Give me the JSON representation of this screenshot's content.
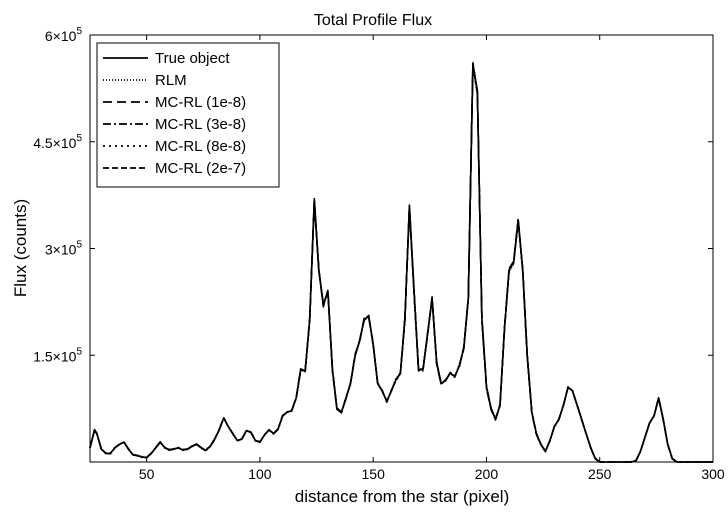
{
  "chart_data": {
    "type": "line",
    "title": "Total Profile Flux",
    "xlabel": "distance from the star (pixel)",
    "ylabel": "Flux (counts)",
    "xlim": [
      25,
      300
    ],
    "ylim": [
      0,
      600000
    ],
    "xticks": [
      50,
      100,
      150,
      200,
      250,
      300
    ],
    "xtick_labels": [
      "50",
      "100",
      "150",
      "200",
      "250",
      "300"
    ],
    "yticks": [
      150000,
      300000,
      450000,
      600000
    ],
    "ytick_labels": [
      {
        "mantissa": "1.5×10",
        "exp": "5"
      },
      {
        "mantissa": "3×10",
        "exp": "5"
      },
      {
        "mantissa": "4.5×10",
        "exp": "5"
      },
      {
        "mantissa": "6×10",
        "exp": "5"
      }
    ],
    "grid": false,
    "legend_position": "top-left",
    "x": [
      25,
      27,
      28,
      30,
      32,
      34,
      36,
      38,
      40,
      42,
      44,
      46,
      48,
      50,
      52,
      54,
      56,
      58,
      60,
      62,
      64,
      66,
      68,
      70,
      72,
      74,
      76,
      78,
      80,
      82,
      84,
      86,
      88,
      90,
      92,
      94,
      96,
      98,
      100,
      102,
      104,
      106,
      108,
      110,
      112,
      114,
      116,
      118,
      120,
      122,
      124,
      126,
      128,
      130,
      132,
      134,
      136,
      138,
      140,
      142,
      144,
      146,
      148,
      150,
      152,
      154,
      156,
      158,
      160,
      162,
      164,
      166,
      168,
      170,
      172,
      174,
      176,
      178,
      180,
      182,
      184,
      186,
      188,
      190,
      192,
      194,
      196,
      198,
      200,
      202,
      204,
      206,
      208,
      210,
      212,
      214,
      216,
      218,
      220,
      222,
      224,
      226,
      228,
      230,
      232,
      234,
      236,
      238,
      240,
      242,
      244,
      246,
      248,
      250,
      252,
      254,
      256,
      258,
      260,
      262,
      264,
      266,
      268,
      270,
      272,
      274,
      276,
      278,
      280,
      282,
      284,
      286,
      288,
      290,
      292,
      294,
      296,
      298,
      300
    ],
    "series": [
      {
        "name": "True object",
        "dash": "solid",
        "values": [
          20000,
          45000,
          40000,
          18000,
          12000,
          12000,
          20000,
          25000,
          28000,
          18000,
          10000,
          9000,
          7000,
          6000,
          12000,
          20000,
          28000,
          20000,
          17000,
          18000,
          20000,
          17000,
          18000,
          22000,
          25000,
          20000,
          16000,
          22000,
          32000,
          45000,
          62000,
          50000,
          40000,
          30000,
          32000,
          44000,
          42000,
          30000,
          28000,
          38000,
          45000,
          40000,
          46000,
          65000,
          70000,
          72000,
          90000,
          130000,
          128000,
          200000,
          370000,
          270000,
          220000,
          240000,
          130000,
          75000,
          70000,
          90000,
          110000,
          150000,
          170000,
          200000,
          205000,
          165000,
          110000,
          100000,
          85000,
          100000,
          115000,
          125000,
          200000,
          360000,
          240000,
          130000,
          130000,
          180000,
          230000,
          140000,
          110000,
          115000,
          125000,
          120000,
          135000,
          160000,
          230000,
          560000,
          520000,
          200000,
          105000,
          75000,
          60000,
          80000,
          190000,
          270000,
          280000,
          340000,
          270000,
          150000,
          70000,
          40000,
          25000,
          15000,
          30000,
          50000,
          60000,
          80000,
          105000,
          100000,
          80000,
          60000,
          40000,
          20000,
          5000,
          0,
          0,
          0,
          0,
          0,
          0,
          0,
          0,
          2000,
          15000,
          35000,
          55000,
          65000,
          90000,
          60000,
          25000,
          5000,
          0,
          0,
          0,
          0,
          0,
          0,
          0,
          0,
          0
        ]
      },
      {
        "name": "RLM",
        "dash": "1,2",
        "values": [
          20000,
          44000,
          41000,
          19000,
          12000,
          12500,
          19500,
          25500,
          27500,
          18500,
          10500,
          9000,
          7500,
          6500,
          12500,
          19500,
          27500,
          20500,
          17500,
          18500,
          19500,
          17500,
          18500,
          21500,
          25500,
          20500,
          16500,
          21500,
          31500,
          44500,
          61500,
          50500,
          40500,
          30500,
          32500,
          43500,
          42500,
          30500,
          28500,
          37500,
          45500,
          40500,
          45500,
          64500,
          70500,
          71500,
          89500,
          129000,
          129000,
          198000,
          365000,
          268000,
          225000,
          236000,
          132000,
          76000,
          71000,
          89000,
          112000,
          148000,
          172000,
          198000,
          207000,
          163000,
          112000,
          99000,
          86000,
          99000,
          117000,
          124000,
          205000,
          355000,
          245000,
          132000,
          128000,
          182000,
          228000,
          142000,
          111000,
          114000,
          126000,
          119000,
          137000,
          158000,
          232000,
          555000,
          515000,
          205000,
          107000,
          76000,
          61000,
          79000,
          192000,
          268000,
          278000,
          338000,
          272000,
          152000,
          71000,
          41000,
          25500,
          15500,
          29500,
          50500,
          59500,
          80500,
          104500,
          100500,
          79500,
          60500,
          39500,
          20500,
          5500,
          500,
          0,
          0,
          0,
          0,
          0,
          0,
          500,
          2500,
          15500,
          34500,
          55500,
          64500,
          89500,
          60500,
          25500,
          5500,
          500,
          0,
          0,
          0,
          0,
          0,
          0,
          0,
          0
        ]
      },
      {
        "name": "MC-RL (1e-8)",
        "dash": "9,5",
        "values": [
          20500,
          45500,
          40500,
          18500,
          12500,
          11500,
          20500,
          24500,
          28500,
          17500,
          10500,
          8500,
          7500,
          6500,
          11500,
          20500,
          28500,
          19500,
          17500,
          17500,
          20500,
          16500,
          18500,
          22500,
          24500,
          19500,
          16500,
          22500,
          32500,
          45500,
          62500,
          49500,
          40500,
          29500,
          32500,
          44500,
          41500,
          30500,
          27500,
          38500,
          44500,
          40500,
          46500,
          65500,
          69500,
          72500,
          90500,
          131000,
          127000,
          202000,
          368000,
          272000,
          218000,
          242000,
          128000,
          74000,
          69000,
          91000,
          109000,
          152000,
          168000,
          202000,
          203000,
          167000,
          108000,
          101000,
          84000,
          101000,
          113000,
          126000,
          198000,
          358000,
          238000,
          128000,
          132000,
          178000,
          232000,
          138000,
          109000,
          116000,
          124000,
          121000,
          133000,
          162000,
          228000,
          558000,
          522000,
          198000,
          103000,
          74000,
          59000,
          81000,
          188000,
          272000,
          282000,
          342000,
          268000,
          148000,
          69000,
          39000,
          24500,
          14500,
          30500,
          49500,
          60500,
          79500,
          105500,
          99500,
          80500,
          59500,
          40500,
          19500,
          4500,
          0,
          0,
          0,
          0,
          0,
          0,
          0,
          0,
          1500,
          14500,
          35500,
          54500,
          65500,
          90500,
          59500,
          24500,
          4500,
          0,
          0,
          0,
          0,
          0,
          0,
          0,
          0,
          0
        ]
      },
      {
        "name": "MC-RL (3e-8)",
        "dash": "8,3,2,3",
        "values": [
          19500,
          44500,
          39500,
          18000,
          11500,
          12500,
          19500,
          25000,
          27500,
          18500,
          9500,
          9500,
          6500,
          6000,
          12500,
          19500,
          27500,
          20500,
          16500,
          18500,
          19500,
          17500,
          17500,
          21500,
          25500,
          20500,
          15500,
          21500,
          31500,
          44500,
          61500,
          50500,
          39500,
          30500,
          31500,
          43500,
          42500,
          29500,
          28500,
          37500,
          45500,
          39500,
          45500,
          64500,
          70500,
          71500,
          89500,
          129000,
          128000,
          199000,
          366000,
          269000,
          222000,
          238000,
          131000,
          76000,
          70000,
          89000,
          111000,
          149000,
          171000,
          199000,
          206000,
          164000,
          111000,
          99000,
          86000,
          99000,
          116000,
          124000,
          203000,
          357000,
          243000,
          131000,
          129000,
          181000,
          229000,
          141000,
          110000,
          114000,
          126000,
          119000,
          136000,
          159000,
          231000,
          557000,
          518000,
          203000,
          106000,
          76000,
          60000,
          79000,
          191000,
          269000,
          279000,
          339000,
          271000,
          151000,
          70000,
          40000,
          25000,
          15000,
          29500,
          50500,
          59500,
          80500,
          104500,
          100500,
          79500,
          60500,
          39500,
          20500,
          5000,
          0,
          0,
          0,
          0,
          0,
          0,
          0,
          0,
          2000,
          15000,
          35000,
          55000,
          65000,
          90000,
          60000,
          25000,
          5000,
          0,
          0,
          0,
          0,
          0,
          0,
          0,
          0,
          0
        ]
      },
      {
        "name": "MC-RL (8e-8)",
        "dash": "2,4",
        "values": [
          20000,
          45000,
          40500,
          18500,
          12000,
          12000,
          20000,
          25000,
          28000,
          18000,
          10000,
          9000,
          7000,
          6000,
          12000,
          20000,
          28000,
          20000,
          17000,
          18000,
          20000,
          17000,
          18000,
          22000,
          25000,
          20000,
          16000,
          22000,
          32000,
          45000,
          62000,
          50000,
          40000,
          30000,
          32000,
          44000,
          42000,
          30000,
          28000,
          38000,
          45000,
          40000,
          46000,
          65000,
          70000,
          72000,
          90000,
          130000,
          128500,
          201000,
          369000,
          271000,
          219000,
          241000,
          129000,
          74500,
          69500,
          90500,
          109500,
          151000,
          169000,
          201000,
          204000,
          166000,
          109000,
          100500,
          84500,
          100500,
          114000,
          125500,
          199000,
          359000,
          239000,
          129000,
          131000,
          179000,
          231000,
          139000,
          109500,
          115500,
          124500,
          120500,
          134000,
          161000,
          229000,
          559000,
          521000,
          199000,
          104000,
          74500,
          59500,
          80500,
          189000,
          271000,
          281000,
          341000,
          269000,
          149000,
          69500,
          39500,
          24500,
          14500,
          30000,
          50000,
          60000,
          80000,
          105000,
          100000,
          80000,
          60000,
          40000,
          20000,
          5000,
          0,
          0,
          0,
          0,
          0,
          0,
          0,
          0,
          2000,
          15000,
          35000,
          55000,
          65000,
          90000,
          60000,
          25000,
          5000,
          0,
          0,
          0,
          0,
          0,
          0,
          0,
          0,
          0
        ]
      },
      {
        "name": "MC-RL (2e-7)",
        "dash": "6,3",
        "values": [
          19800,
          44800,
          40200,
          18200,
          12200,
          12200,
          19800,
          25200,
          27800,
          18200,
          10200,
          9200,
          7200,
          6200,
          12200,
          19800,
          27800,
          20200,
          17200,
          18200,
          19800,
          17200,
          18200,
          21800,
          25200,
          20200,
          16200,
          21800,
          31800,
          44800,
          61800,
          50200,
          40200,
          30200,
          32200,
          43800,
          42200,
          30200,
          28200,
          37800,
          45200,
          40200,
          45800,
          64800,
          70200,
          71800,
          89800,
          129500,
          128200,
          199500,
          367000,
          270000,
          221000,
          239000,
          130000,
          75500,
          70500,
          89500,
          110500,
          149500,
          170500,
          199500,
          205500,
          164500,
          110500,
          99500,
          85500,
          99500,
          115500,
          124500,
          201000,
          361000,
          241000,
          130500,
          129500,
          180500,
          230500,
          140500,
          110500,
          114500,
          125500,
          119500,
          135500,
          159500,
          230500,
          561000,
          519000,
          201000,
          105500,
          75500,
          60500,
          79500,
          190500,
          270500,
          280500,
          339500,
          270500,
          150500,
          70500,
          40500,
          25200,
          15200,
          29800,
          50200,
          59800,
          80200,
          104800,
          100200,
          79800,
          60200,
          39800,
          20200,
          5200,
          200,
          0,
          0,
          0,
          0,
          0,
          0,
          200,
          2200,
          15200,
          34800,
          55200,
          64800,
          89800,
          60200,
          25200,
          5200,
          200,
          0,
          0,
          0,
          0,
          0,
          0,
          0,
          0
        ]
      }
    ]
  }
}
